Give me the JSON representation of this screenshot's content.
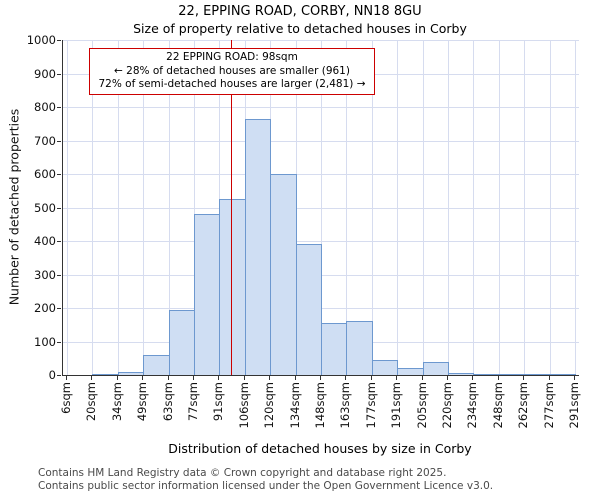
{
  "footer": {
    "line1": "Contains HM Land Registry data © Crown copyright and database right 2025.",
    "line2": "Contains public sector information licensed under the Open Government Licence v3.0."
  },
  "chart_data": {
    "type": "bar",
    "title": "22, EPPING ROAD, CORBY, NN18 8GU",
    "subtitle": "Size of property relative to detached houses in Corby",
    "xlabel": "Distribution of detached houses by size in Corby",
    "ylabel": "Number of detached properties",
    "x_bin_edges": [
      6,
      20,
      34,
      49,
      63,
      77,
      91,
      106,
      120,
      134,
      148,
      163,
      177,
      191,
      205,
      220,
      234,
      248,
      262,
      277,
      291
    ],
    "xtick_labels": [
      "6sqm",
      "20sqm",
      "34sqm",
      "49sqm",
      "63sqm",
      "77sqm",
      "91sqm",
      "106sqm",
      "120sqm",
      "134sqm",
      "148sqm",
      "163sqm",
      "177sqm",
      "191sqm",
      "205sqm",
      "220sqm",
      "234sqm",
      "248sqm",
      "262sqm",
      "277sqm",
      "291sqm"
    ],
    "values": [
      0,
      2,
      10,
      60,
      195,
      480,
      525,
      765,
      600,
      390,
      155,
      160,
      45,
      20,
      40,
      5,
      3,
      2,
      2,
      2
    ],
    "ylim": [
      0,
      1000
    ],
    "ytick_step": 100,
    "grid": true,
    "legend_position": "none",
    "marker": {
      "label": "22 EPPING ROAD",
      "value_sqm": 98
    },
    "annotation": {
      "line1": "22 EPPING ROAD: 98sqm",
      "line2": "← 28% of detached houses are smaller (961)",
      "line3": "72% of semi-detached houses are larger (2,481) →"
    },
    "colors": {
      "bar_fill": "#cfdef3",
      "bar_edge": "#6d98cf",
      "grid": "#d6dcef",
      "marker": "#cc0000",
      "annotation_border": "#cc0000"
    }
  }
}
